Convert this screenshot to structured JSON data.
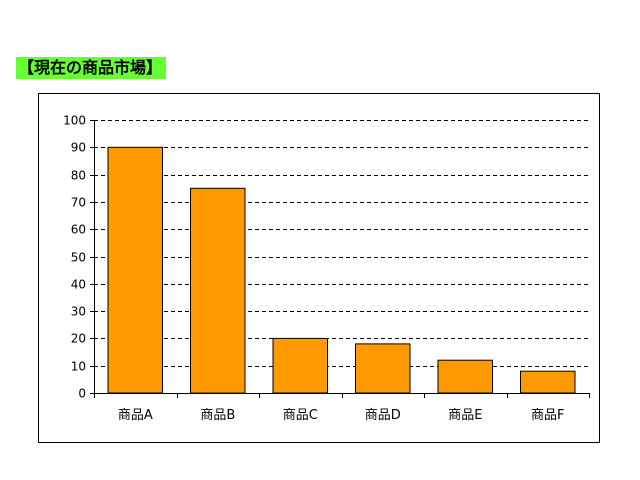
{
  "header": {
    "title": "【現在の商品市場】"
  },
  "colors": {
    "title_background": "#66ff33",
    "bar_fill": "#ff9900",
    "bar_stroke": "#000000",
    "gridline": "#000000"
  },
  "chart_data": {
    "type": "bar",
    "title": "",
    "xlabel": "",
    "ylabel": "",
    "categories": [
      "商品A",
      "商品B",
      "商品C",
      "商品D",
      "商品E",
      "商品F"
    ],
    "values": [
      90,
      75,
      20,
      18,
      12,
      8
    ],
    "ylim": [
      0,
      100
    ],
    "yticks": [
      "0",
      "10",
      "20",
      "30",
      "40",
      "50",
      "60",
      "70",
      "80",
      "90",
      "100"
    ],
    "grid": true,
    "grid_style": "dashed",
    "legend": false
  }
}
